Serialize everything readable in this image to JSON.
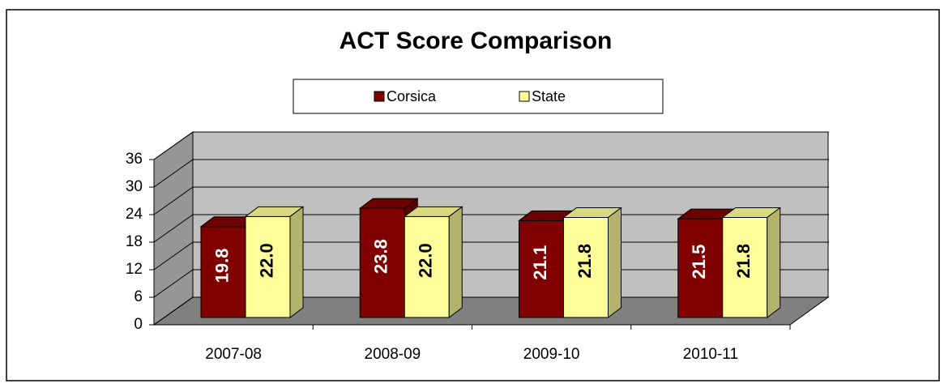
{
  "chart_data": {
    "type": "bar3d",
    "title": "ACT Score Comparison",
    "categories": [
      "2007-08",
      "2008-09",
      "2009-10",
      "2010-11"
    ],
    "series": [
      {
        "name": "Corsica",
        "color": "#800000",
        "values": [
          19.8,
          23.8,
          21.1,
          21.5
        ]
      },
      {
        "name": "State",
        "color": "#ffff99",
        "values": [
          22.0,
          22.0,
          21.8,
          21.8
        ],
        "value_labels": [
          "22.0",
          "22.0",
          "21.8",
          "21.8"
        ]
      }
    ],
    "ylim": [
      0,
      36
    ],
    "yticks": [
      0,
      6,
      12,
      18,
      24,
      30,
      36
    ],
    "grid": true,
    "legend": "top"
  }
}
